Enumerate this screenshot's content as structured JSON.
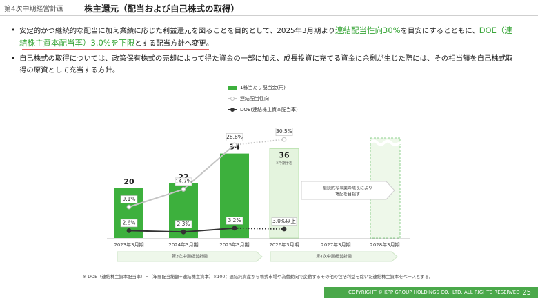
{
  "header": {
    "section": "第4次中期経営計画",
    "title": "株主還元（配当および自己株式の取得）"
  },
  "bullets": [
    [
      "安定的かつ継続的な配当に加え業績に応じた利益還元を図ることを目的として、2025年3月期より",
      "連結配当性向30%",
      "を目安にするとともに、",
      "DOE（連結株主資本配当率）3.0%を下限",
      "とする配当方針へ変更。"
    ],
    [
      "自己株式の取得については、政策保有株式の売却によって得た資金の一部に加え、成長投資に充てる資金に余剰が生じた際には、その相当額を自己株式取得の原資として充当する方針。"
    ]
  ],
  "chart_data": {
    "type": "bar",
    "categories": [
      "2023年3月期",
      "2024年3月期",
      "2025年3月期",
      "2026年3月期",
      "2027年3月期",
      "2028年3月期"
    ],
    "series": [
      {
        "name": "1株当たり配当金(円)",
        "type": "bar",
        "color": "#3db03d",
        "colors": [
          "#3db03d",
          "#3db03d",
          "#3db03d",
          "#e4f4de",
          null,
          null
        ],
        "values": [
          20,
          22,
          34,
          36,
          null,
          null
        ]
      },
      {
        "name": "連結配当性向",
        "type": "line",
        "color": "#c4c4c4",
        "values": [
          9.1,
          14.7,
          28.8,
          30.5,
          null,
          null
        ],
        "value_labels": [
          "9.1%",
          "14.7%",
          "28.8%",
          "30.5%",
          null,
          null
        ]
      },
      {
        "name": "DOE(連結株主資本配当率)",
        "type": "line",
        "color": "#333333",
        "values": [
          2.6,
          2.3,
          3.2,
          3.0,
          null,
          null
        ],
        "value_labels": [
          "2.6%",
          "2.3%",
          "3.2%",
          "3.0%以上",
          null,
          null
        ]
      }
    ],
    "annotations": [
      "※今期予想",
      "継続的な事業の成長により",
      "増配を目指す"
    ],
    "periods": [
      "第3次中期経営計画",
      "第4次中期経営計画"
    ]
  },
  "footnote": "※ DOE（連結株主資本配当率）=（年間配当総額÷連結株主資本）×100：連結純資産から株式市場や為替動向で変動するその他の包括利益を除いた連結株主資本をベースとする。",
  "footer": {
    "copyright": "COPYRIGHT © KPP GROUP HOLDINGS CO., LTD. ALL RIGHTS RESERVED",
    "page": "25"
  }
}
